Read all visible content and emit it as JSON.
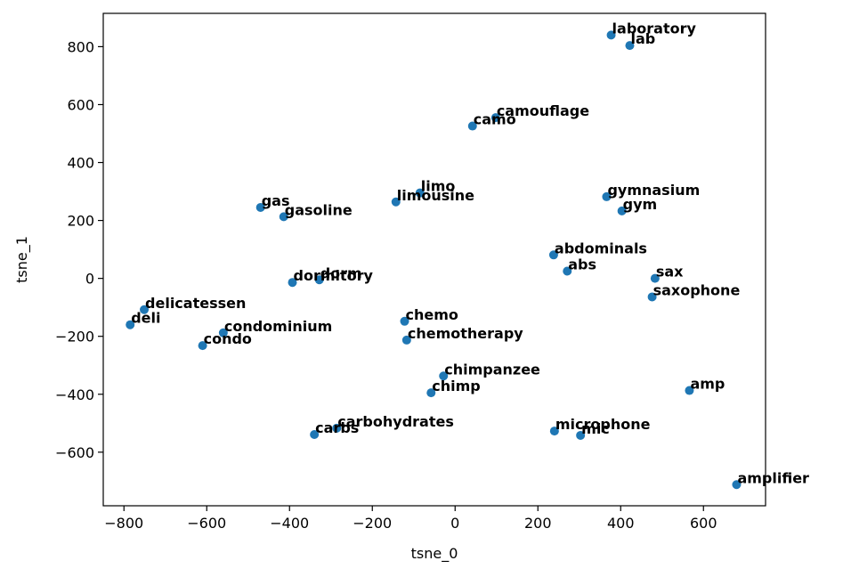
{
  "chart_data": {
    "type": "scatter",
    "title": "",
    "xlabel": "tsne_0",
    "ylabel": "tsne_1",
    "xlim": [
      -850,
      750
    ],
    "ylim": [
      -785,
      915
    ],
    "xticks": [
      -800,
      -600,
      -400,
      -200,
      0,
      200,
      400,
      600
    ],
    "yticks": [
      -600,
      -400,
      -200,
      0,
      200,
      400,
      600,
      800
    ],
    "grid": false,
    "legend": "none",
    "point_color": "#1f77b4",
    "points": [
      {
        "label": "laboratory",
        "x": 377,
        "y": 840
      },
      {
        "label": "lab",
        "x": 422,
        "y": 804
      },
      {
        "label": "camouflage",
        "x": 98,
        "y": 555
      },
      {
        "label": "camo",
        "x": 42,
        "y": 526
      },
      {
        "label": "limo",
        "x": -85,
        "y": 295
      },
      {
        "label": "limousine",
        "x": -143,
        "y": 264
      },
      {
        "label": "gymnasium",
        "x": 366,
        "y": 282
      },
      {
        "label": "gym",
        "x": 403,
        "y": 233
      },
      {
        "label": "gas",
        "x": -470,
        "y": 245
      },
      {
        "label": "gasoline",
        "x": -414,
        "y": 213
      },
      {
        "label": "abdominals",
        "x": 238,
        "y": 81
      },
      {
        "label": "abs",
        "x": 271,
        "y": 25
      },
      {
        "label": "sax",
        "x": 483,
        "y": 0
      },
      {
        "label": "saxophone",
        "x": 476,
        "y": -64
      },
      {
        "label": "dorm",
        "x": -328,
        "y": -5
      },
      {
        "label": "dormitory",
        "x": -393,
        "y": -14
      },
      {
        "label": "delicatessen",
        "x": -751,
        "y": -108
      },
      {
        "label": "deli",
        "x": -785,
        "y": -160
      },
      {
        "label": "condominium",
        "x": -560,
        "y": -188
      },
      {
        "label": "condo",
        "x": -610,
        "y": -232
      },
      {
        "label": "chemo",
        "x": -122,
        "y": -148
      },
      {
        "label": "chemotherapy",
        "x": -117,
        "y": -213
      },
      {
        "label": "chimpanzee",
        "x": -28,
        "y": -337
      },
      {
        "label": "chimp",
        "x": -58,
        "y": -395
      },
      {
        "label": "amp",
        "x": 566,
        "y": -387
      },
      {
        "label": "carbohydrates",
        "x": -286,
        "y": -517
      },
      {
        "label": "carbs",
        "x": -340,
        "y": -539
      },
      {
        "label": "microphone",
        "x": 240,
        "y": -527
      },
      {
        "label": "mic",
        "x": 303,
        "y": -542
      },
      {
        "label": "amplifier",
        "x": 680,
        "y": -712
      }
    ]
  }
}
